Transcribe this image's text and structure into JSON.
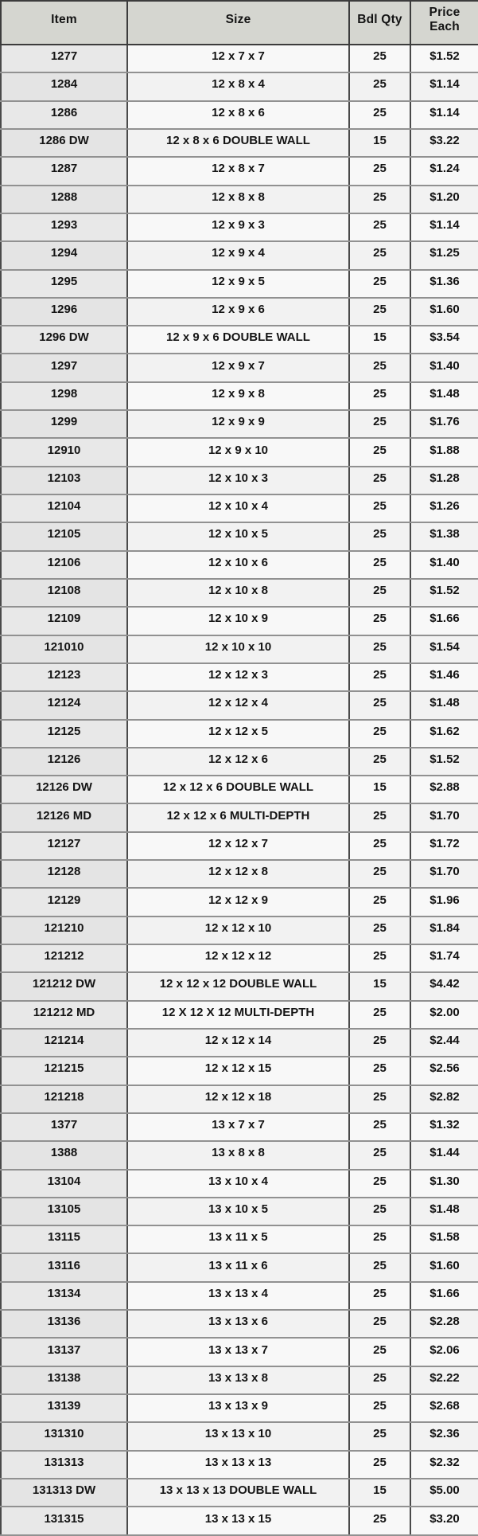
{
  "colors": {
    "header_bg": "#d5d6d0",
    "item_column_bg": "#e8e8e8",
    "cell_bg": "#f8f8f8",
    "outer_border": "#3c3c3c",
    "row_divider": "#919191",
    "text": "#141414"
  },
  "table": {
    "columns": [
      "Item",
      "Size",
      "Bdl Qty",
      "Price Each"
    ],
    "rows": [
      {
        "item": "1277",
        "size": "12 x 7 x 7",
        "qty": "25",
        "price": "$1.52"
      },
      {
        "item": "1284",
        "size": "12 x 8 x 4",
        "qty": "25",
        "price": "$1.14"
      },
      {
        "item": "1286",
        "size": "12 x 8 x 6",
        "qty": "25",
        "price": "$1.14"
      },
      {
        "item": "1286 DW",
        "size": "12 x 8 x 6 DOUBLE WALL",
        "qty": "15",
        "price": "$3.22"
      },
      {
        "item": "1287",
        "size": "12 x 8 x 7",
        "qty": "25",
        "price": "$1.24"
      },
      {
        "item": "1288",
        "size": "12 x 8 x 8",
        "qty": "25",
        "price": "$1.20"
      },
      {
        "item": "1293",
        "size": "12 x 9 x 3",
        "qty": "25",
        "price": "$1.14"
      },
      {
        "item": "1294",
        "size": "12 x 9 x 4",
        "qty": "25",
        "price": "$1.25"
      },
      {
        "item": "1295",
        "size": "12 x 9 x 5",
        "qty": "25",
        "price": "$1.36"
      },
      {
        "item": "1296",
        "size": "12 x 9 x 6",
        "qty": "25",
        "price": "$1.60"
      },
      {
        "item": "1296 DW",
        "size": "12 x 9 x 6 DOUBLE WALL",
        "qty": "15",
        "price": "$3.54"
      },
      {
        "item": "1297",
        "size": "12 x 9 x 7",
        "qty": "25",
        "price": "$1.40"
      },
      {
        "item": "1298",
        "size": "12 x 9 x 8",
        "qty": "25",
        "price": "$1.48"
      },
      {
        "item": "1299",
        "size": "12 x 9 x 9",
        "qty": "25",
        "price": "$1.76"
      },
      {
        "item": "12910",
        "size": "12 x 9 x 10",
        "qty": "25",
        "price": "$1.88"
      },
      {
        "item": "12103",
        "size": "12 x 10 x 3",
        "qty": "25",
        "price": "$1.28"
      },
      {
        "item": "12104",
        "size": "12 x 10 x 4",
        "qty": "25",
        "price": "$1.26"
      },
      {
        "item": "12105",
        "size": "12 x 10 x 5",
        "qty": "25",
        "price": "$1.38"
      },
      {
        "item": "12106",
        "size": "12 x 10 x 6",
        "qty": "25",
        "price": "$1.40"
      },
      {
        "item": "12108",
        "size": "12 x 10 x 8",
        "qty": "25",
        "price": "$1.52"
      },
      {
        "item": "12109",
        "size": "12 x 10 x 9",
        "qty": "25",
        "price": "$1.66"
      },
      {
        "item": "121010",
        "size": "12 x 10 x 10",
        "qty": "25",
        "price": "$1.54"
      },
      {
        "item": "12123",
        "size": "12 x 12 x 3",
        "qty": "25",
        "price": "$1.46"
      },
      {
        "item": "12124",
        "size": "12 x 12 x 4",
        "qty": "25",
        "price": "$1.48"
      },
      {
        "item": "12125",
        "size": "12 x 12 x 5",
        "qty": "25",
        "price": "$1.62"
      },
      {
        "item": "12126",
        "size": "12 x 12 x 6",
        "qty": "25",
        "price": "$1.52"
      },
      {
        "item": "12126 DW",
        "size": "12 x 12 x 6 DOUBLE WALL",
        "qty": "15",
        "price": "$2.88"
      },
      {
        "item": "12126 MD",
        "size": "12 x 12 x 6 MULTI-DEPTH",
        "qty": "25",
        "price": "$1.70"
      },
      {
        "item": "12127",
        "size": "12 x 12 x 7",
        "qty": "25",
        "price": "$1.72"
      },
      {
        "item": "12128",
        "size": "12 x 12 x 8",
        "qty": "25",
        "price": "$1.70"
      },
      {
        "item": "12129",
        "size": "12 x 12 x 9",
        "qty": "25",
        "price": "$1.96"
      },
      {
        "item": "121210",
        "size": "12 x 12 x 10",
        "qty": "25",
        "price": "$1.84"
      },
      {
        "item": "121212",
        "size": "12 x 12 x 12",
        "qty": "25",
        "price": "$1.74"
      },
      {
        "item": "121212 DW",
        "size": "12 x 12 x 12 DOUBLE WALL",
        "qty": "15",
        "price": "$4.42"
      },
      {
        "item": "121212 MD",
        "size": "12 X 12 X 12 MULTI-DEPTH",
        "qty": "25",
        "price": "$2.00"
      },
      {
        "item": "121214",
        "size": "12 x 12 x 14",
        "qty": "25",
        "price": "$2.44"
      },
      {
        "item": "121215",
        "size": "12 x 12 x 15",
        "qty": "25",
        "price": "$2.56"
      },
      {
        "item": "121218",
        "size": "12 x 12 x 18",
        "qty": "25",
        "price": "$2.82"
      },
      {
        "item": "1377",
        "size": "13 x 7 x 7",
        "qty": "25",
        "price": "$1.32"
      },
      {
        "item": "1388",
        "size": "13 x 8 x 8",
        "qty": "25",
        "price": "$1.44"
      },
      {
        "item": "13104",
        "size": "13 x 10 x 4",
        "qty": "25",
        "price": "$1.30"
      },
      {
        "item": "13105",
        "size": "13 x 10 x 5",
        "qty": "25",
        "price": "$1.48"
      },
      {
        "item": "13115",
        "size": "13 x 11 x 5",
        "qty": "25",
        "price": "$1.58"
      },
      {
        "item": "13116",
        "size": "13 x 11 x 6",
        "qty": "25",
        "price": "$1.60"
      },
      {
        "item": "13134",
        "size": "13 x 13 x 4",
        "qty": "25",
        "price": "$1.66"
      },
      {
        "item": "13136",
        "size": "13 x 13 x 6",
        "qty": "25",
        "price": "$2.28"
      },
      {
        "item": "13137",
        "size": "13 x 13 x 7",
        "qty": "25",
        "price": "$2.06"
      },
      {
        "item": "13138",
        "size": "13 x 13 x 8",
        "qty": "25",
        "price": "$2.22"
      },
      {
        "item": "13139",
        "size": "13 x 13 x 9",
        "qty": "25",
        "price": "$2.68"
      },
      {
        "item": "131310",
        "size": "13 x 13 x 10",
        "qty": "25",
        "price": "$2.36"
      },
      {
        "item": "131313",
        "size": "13 x 13 x 13",
        "qty": "25",
        "price": "$2.32"
      },
      {
        "item": "131313 DW",
        "size": "13 x 13 x 13 DOUBLE WALL",
        "qty": "15",
        "price": "$5.00"
      },
      {
        "item": "131315",
        "size": "13 x 13 x 15",
        "qty": "25",
        "price": "$3.20"
      }
    ]
  }
}
